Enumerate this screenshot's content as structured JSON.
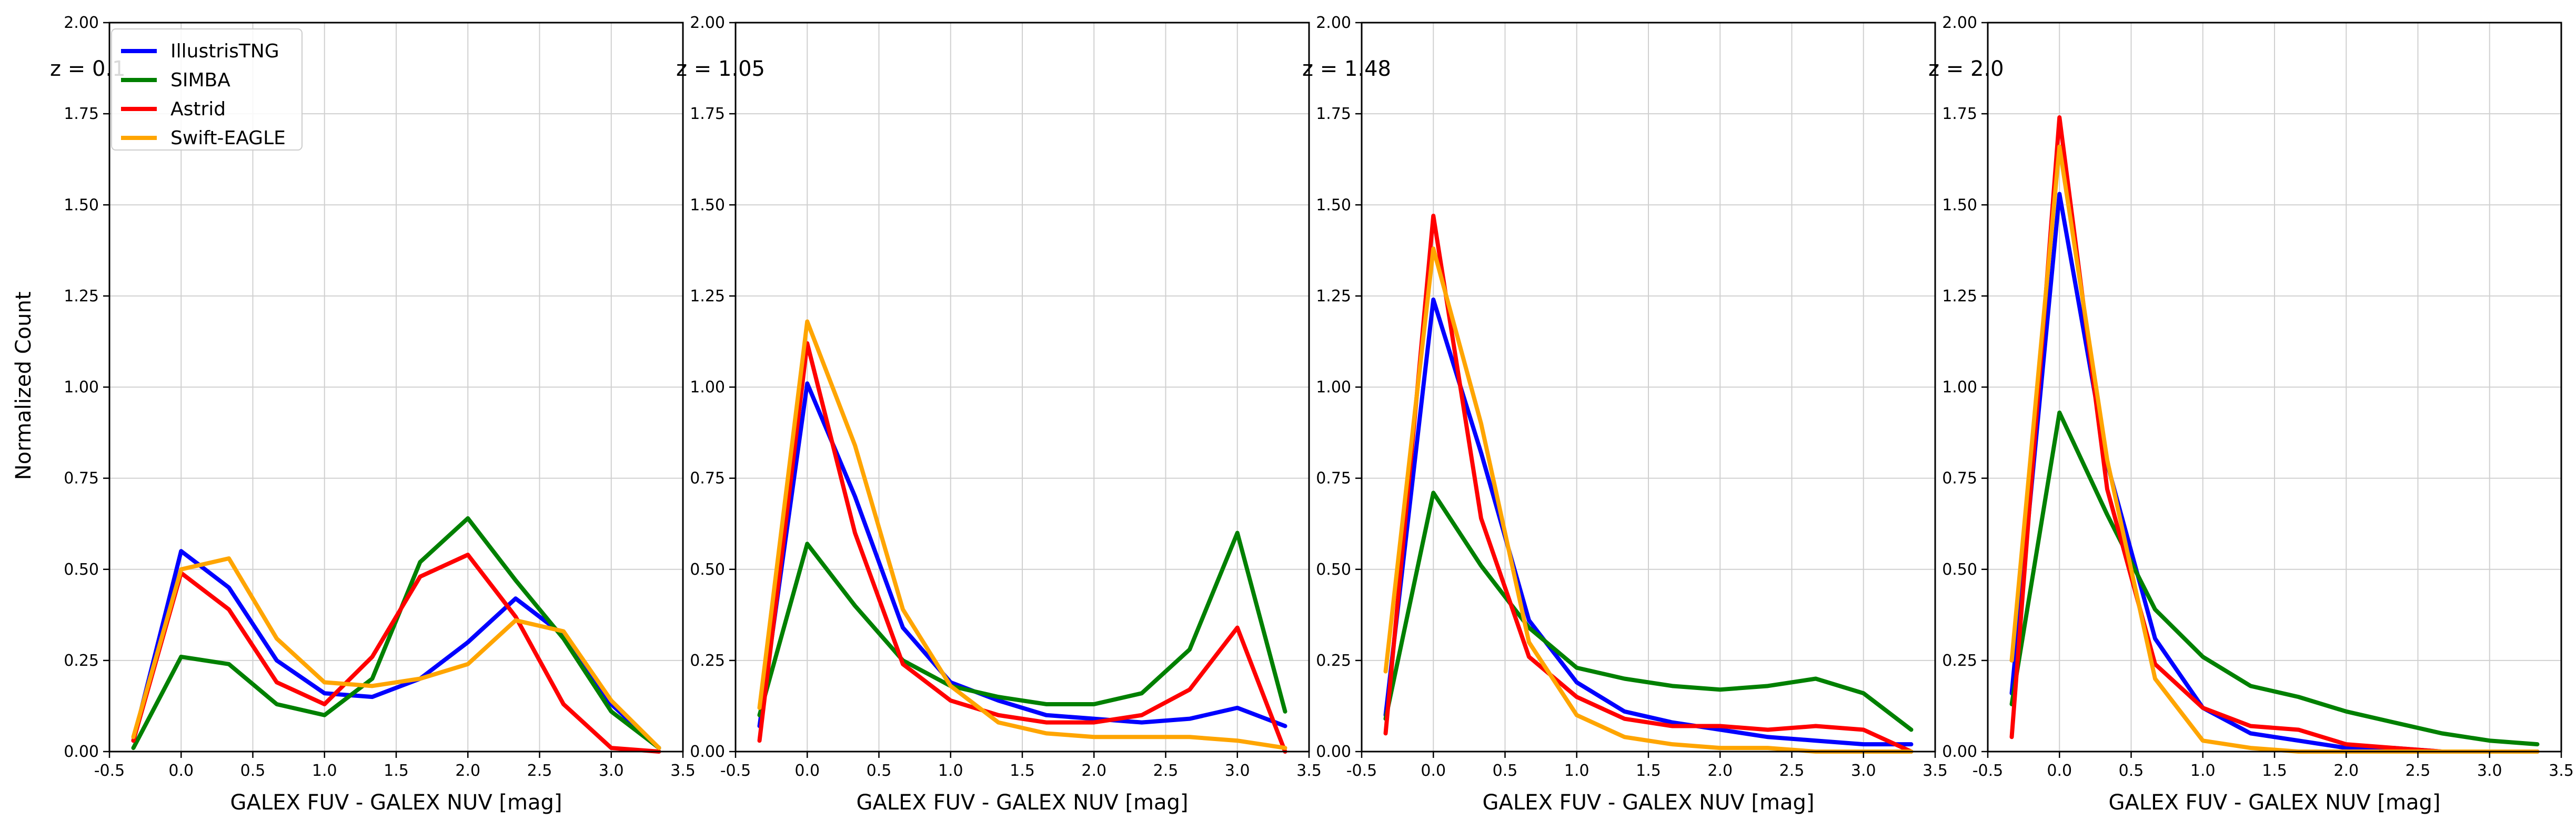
{
  "chart_data": {
    "type": "line",
    "ylabel": "Normalized Count",
    "ylim": [
      0,
      2
    ],
    "xlim": [
      -0.5,
      3.5
    ],
    "grid": true,
    "legend_placement": "top-left",
    "x_ticks": [
      "-0.5",
      "0.0",
      "0.5",
      "1.0",
      "1.5",
      "2.0",
      "2.5",
      "3.0",
      "3.5"
    ],
    "y_ticks": [
      "0.00",
      "0.25",
      "0.50",
      "0.75",
      "1.00",
      "1.25",
      "1.50",
      "1.75",
      "2.00"
    ],
    "x": [
      -0.333,
      0.0,
      0.333,
      0.667,
      1.0,
      1.333,
      1.667,
      2.0,
      2.333,
      2.667,
      3.0,
      3.333
    ],
    "series_styles": [
      {
        "name": "IllustrisTNG",
        "color": "#0000ff"
      },
      {
        "name": "SIMBA",
        "color": "#008000"
      },
      {
        "name": "Astrid",
        "color": "#ff0000"
      },
      {
        "name": "Swift-EAGLE",
        "color": "#ffa500"
      }
    ],
    "panels": [
      {
        "title": "z = 0.1",
        "xlabel": "GALEX FUV - GALEX NUV [mag]",
        "series": [
          {
            "name": "IllustrisTNG",
            "values": [
              0.03,
              0.55,
              0.45,
              0.25,
              0.16,
              0.15,
              0.2,
              0.3,
              0.42,
              0.32,
              0.13,
              0.01
            ]
          },
          {
            "name": "SIMBA",
            "values": [
              0.01,
              0.26,
              0.24,
              0.13,
              0.1,
              0.2,
              0.52,
              0.64,
              0.47,
              0.31,
              0.11,
              0.01
            ]
          },
          {
            "name": "Astrid",
            "values": [
              0.03,
              0.49,
              0.39,
              0.19,
              0.13,
              0.26,
              0.48,
              0.54,
              0.37,
              0.13,
              0.01,
              0.0
            ]
          },
          {
            "name": "Swift-EAGLE",
            "values": [
              0.04,
              0.5,
              0.53,
              0.31,
              0.19,
              0.18,
              0.2,
              0.24,
              0.36,
              0.33,
              0.14,
              0.01
            ]
          }
        ]
      },
      {
        "title": "z = 1.05",
        "xlabel": "GALEX FUV - GALEX NUV [mag]",
        "series": [
          {
            "name": "IllustrisTNG",
            "values": [
              0.07,
              1.01,
              0.7,
              0.34,
              0.19,
              0.14,
              0.1,
              0.09,
              0.08,
              0.09,
              0.12,
              0.07
            ]
          },
          {
            "name": "SIMBA",
            "values": [
              0.1,
              0.57,
              0.4,
              0.25,
              0.18,
              0.15,
              0.13,
              0.13,
              0.16,
              0.28,
              0.6,
              0.11
            ]
          },
          {
            "name": "Astrid",
            "values": [
              0.03,
              1.12,
              0.6,
              0.24,
              0.14,
              0.1,
              0.08,
              0.08,
              0.1,
              0.17,
              0.34,
              0.0
            ]
          },
          {
            "name": "Swift-EAGLE",
            "values": [
              0.12,
              1.18,
              0.84,
              0.39,
              0.18,
              0.08,
              0.05,
              0.04,
              0.04,
              0.04,
              0.03,
              0.01
            ]
          }
        ]
      },
      {
        "title": "z = 1.48",
        "xlabel": "GALEX FUV - GALEX NUV [mag]",
        "series": [
          {
            "name": "IllustrisTNG",
            "values": [
              0.1,
              1.24,
              0.82,
              0.36,
              0.19,
              0.11,
              0.08,
              0.06,
              0.04,
              0.03,
              0.02,
              0.02
            ]
          },
          {
            "name": "SIMBA",
            "values": [
              0.09,
              0.71,
              0.51,
              0.34,
              0.23,
              0.2,
              0.18,
              0.17,
              0.18,
              0.2,
              0.16,
              0.06
            ]
          },
          {
            "name": "Astrid",
            "values": [
              0.05,
              1.47,
              0.64,
              0.26,
              0.15,
              0.09,
              0.07,
              0.07,
              0.06,
              0.07,
              0.06,
              0.0
            ]
          },
          {
            "name": "Swift-EAGLE",
            "values": [
              0.22,
              1.38,
              0.9,
              0.3,
              0.1,
              0.04,
              0.02,
              0.01,
              0.01,
              0.0,
              0.0,
              0.0
            ]
          }
        ]
      },
      {
        "title": "z = 2.0",
        "xlabel": "GALEX FUV - GALEX NUV [mag]",
        "series": [
          {
            "name": "IllustrisTNG",
            "values": [
              0.16,
              1.53,
              0.79,
              0.31,
              0.12,
              0.05,
              0.03,
              0.01,
              0.01,
              0.0,
              0.0,
              0.0
            ]
          },
          {
            "name": "SIMBA",
            "values": [
              0.13,
              0.93,
              0.65,
              0.39,
              0.26,
              0.18,
              0.15,
              0.11,
              0.08,
              0.05,
              0.03,
              0.02
            ]
          },
          {
            "name": "Astrid",
            "values": [
              0.04,
              1.74,
              0.72,
              0.24,
              0.12,
              0.07,
              0.06,
              0.02,
              0.01,
              0.0,
              0.0,
              0.0
            ]
          },
          {
            "name": "Swift-EAGLE",
            "values": [
              0.25,
              1.66,
              0.8,
              0.2,
              0.03,
              0.01,
              0.0,
              0.0,
              0.0,
              0.0,
              0.0,
              0.0
            ]
          }
        ]
      }
    ]
  }
}
